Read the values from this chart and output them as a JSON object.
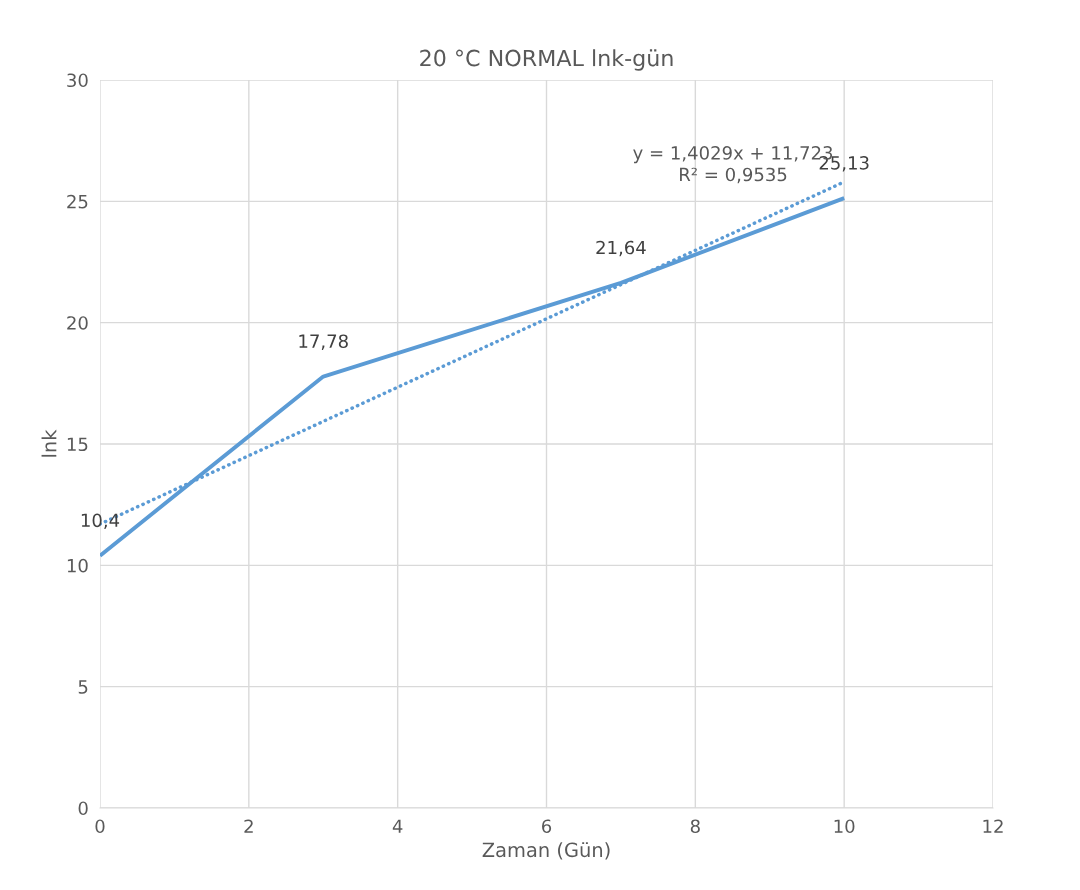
{
  "chart_data": {
    "type": "line",
    "title": "20 °C NORMAL lnk-gün",
    "xlabel": "Zaman (Gün)",
    "ylabel": "lnk",
    "xlim": [
      0,
      12
    ],
    "xticks": [
      0,
      2,
      4,
      6,
      8,
      10,
      12
    ],
    "ylim": [
      0,
      30
    ],
    "yticks": [
      0,
      5,
      10,
      15,
      20,
      25,
      30
    ],
    "grid": true,
    "marker": "none",
    "series": [
      {
        "color": "#5b9bd5",
        "x": [
          0,
          3,
          7,
          10
        ],
        "values": [
          10.4,
          17.78,
          21.64,
          25.13
        ],
        "line_style": "solid",
        "value_labels": [
          "10,4",
          "17,78",
          "21,64",
          "25,13"
        ]
      },
      {
        "type": "line",
        "color": "#5b9bd5",
        "x": [
          0,
          10
        ],
        "values": [
          11.7,
          25.8
        ],
        "line_style": "dotted"
      }
    ],
    "annotations": [
      {
        "text": "y = 1,4029x + 11,723\nR² = 0,9535",
        "x": 10,
        "y": 25.8
      }
    ]
  }
}
